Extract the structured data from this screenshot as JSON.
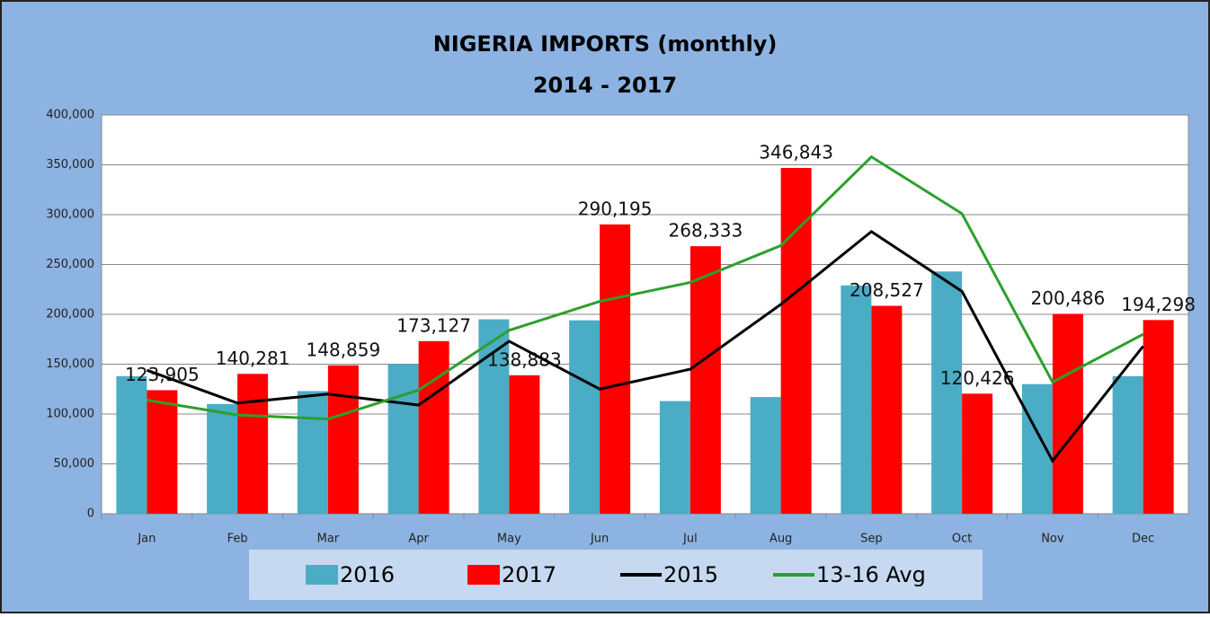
{
  "chart_data": {
    "type": "bar_line",
    "title": "NIGERIA IMPORTS (monthly)",
    "subtitle": "2014 - 2017",
    "categories": [
      "Jan",
      "Feb",
      "Mar",
      "Apr",
      "May",
      "Jun",
      "Jul",
      "Aug",
      "Sep",
      "Oct",
      "Nov",
      "Dec"
    ],
    "series": [
      {
        "name": "2016",
        "type": "bar",
        "color": "#4bacc6",
        "values": [
          138000,
          110000,
          123000,
          150000,
          195000,
          194000,
          113000,
          117000,
          229000,
          243000,
          130000,
          138000
        ]
      },
      {
        "name": "2017",
        "type": "bar",
        "color": "#ff0000",
        "values": [
          123905,
          140281,
          148859,
          173127,
          138883,
          290195,
          268333,
          346843,
          208527,
          120426,
          200486,
          194298
        ],
        "value_labels": [
          "123,905",
          "140,281",
          "148,859",
          "173,127",
          "138,883",
          "290,195",
          "268,333",
          "346,843",
          "208,527",
          "120,426",
          "200,486",
          "194,298"
        ]
      },
      {
        "name": "2015",
        "type": "line",
        "color": "#000000",
        "values": [
          144000,
          111000,
          120000,
          109000,
          173000,
          125000,
          145000,
          210000,
          283000,
          223000,
          53000,
          168000
        ]
      },
      {
        "name": "13-16 Avg",
        "type": "line",
        "color": "#2ca02c",
        "values": [
          114000,
          99000,
          95000,
          124000,
          184000,
          213000,
          232000,
          269000,
          358000,
          301000,
          132000,
          180000
        ]
      }
    ],
    "ylim": [
      0,
      400000
    ],
    "yticks": [
      0,
      {
        "value": 50000,
        "label": "50,000"
      },
      {
        "value": 100000,
        "label": "100,000"
      },
      {
        "value": 150000,
        "label": "150,000"
      },
      {
        "value": 200000,
        "label": "200,000"
      },
      {
        "value": 250000,
        "label": "250,000"
      },
      {
        "value": 300000,
        "label": "300,000"
      },
      {
        "value": 350000,
        "label": "350,000"
      },
      {
        "value": 400000,
        "label": "400,000"
      }
    ],
    "grid": true,
    "legend": "bottom"
  }
}
